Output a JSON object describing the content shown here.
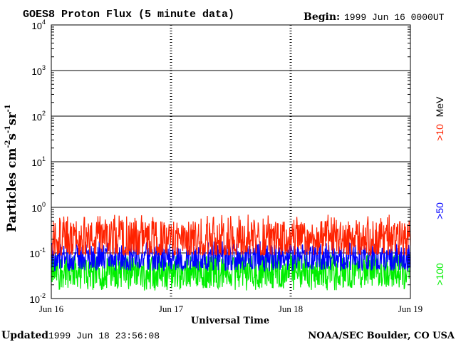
{
  "chart_data": {
    "type": "line",
    "title": "GOES8 Proton Flux (5 minute data)",
    "begin_label": "Begin:",
    "begin_value": "1999 Jun 16 0000UT",
    "xlabel": "Universal Time",
    "ylabel_main": "Particles cm",
    "ylabel_exp1": "-2",
    "ylabel_s": "s",
    "ylabel_exp2": "-1",
    "ylabel_sr": "sr",
    "ylabel_exp3": "-1",
    "yscale": "log",
    "ylim": [
      0.01,
      10000
    ],
    "y_ticks": [
      {
        "base": "10",
        "exp": "-2",
        "value": 0.01
      },
      {
        "base": "10",
        "exp": "-1",
        "value": 0.1
      },
      {
        "base": "10",
        "exp": "0",
        "value": 1
      },
      {
        "base": "10",
        "exp": "1",
        "value": 10
      },
      {
        "base": "10",
        "exp": "2",
        "value": 100
      },
      {
        "base": "10",
        "exp": "3",
        "value": 1000
      },
      {
        "base": "10",
        "exp": "4",
        "value": 10000
      }
    ],
    "x_ticks": [
      {
        "label": "Jun 16",
        "day": 0
      },
      {
        "label": "Jun 17",
        "day": 1
      },
      {
        "label": "Jun 18",
        "day": 2
      },
      {
        "label": "Jun 19",
        "day": 3
      }
    ],
    "xlim": [
      0,
      3
    ],
    "series": [
      {
        "name": ">10",
        "color": "#ff2200",
        "typical": 0.2,
        "min": 0.09,
        "max": 0.7
      },
      {
        "name": ">50",
        "color": "#0000ff",
        "typical": 0.08,
        "min": 0.04,
        "max": 0.18
      },
      {
        "name": ">100",
        "color": "#00ee00",
        "typical": 0.04,
        "min": 0.015,
        "max": 0.1
      }
    ],
    "unit_label": "MeV",
    "grid": true
  },
  "footer": {
    "updated_label": "Updated",
    "updated_value": "1999 Jun 18 23:56:08",
    "source": "NOAA/SEC Boulder, CO USA"
  }
}
